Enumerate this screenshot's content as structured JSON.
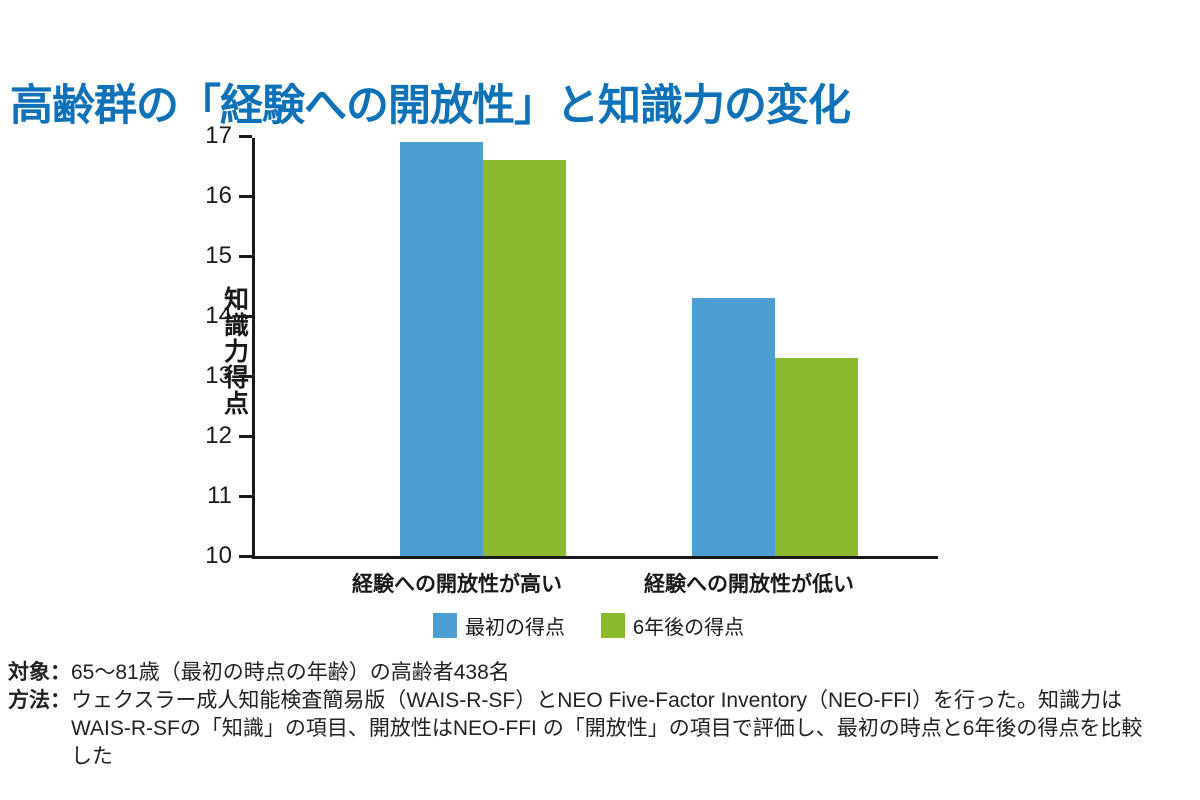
{
  "title": "高齢群の「経験への開放性」と知識力の変化",
  "chart_data": {
    "type": "bar",
    "categories": [
      "経験への開放性が高い",
      "経験への開放性が低い"
    ],
    "series": [
      {
        "name": "最初の得点",
        "color": "#4d9ed3",
        "values": [
          16.9,
          14.3
        ]
      },
      {
        "name": "6年後の得点",
        "color": "#8cb92f",
        "values": [
          16.6,
          13.3
        ]
      }
    ],
    "title": "高齢群の「経験への開放性」と知識力の変化",
    "xlabel": "",
    "ylabel": "知識力得点",
    "ylim": [
      10,
      17
    ],
    "yticks": [
      10,
      11,
      12,
      13,
      14,
      15,
      16,
      17
    ],
    "grid": false,
    "legend_position": "bottom"
  },
  "notes": [
    {
      "label": "対象：",
      "text": "65〜81歳（最初の時点の年齢）の高齢者438名"
    },
    {
      "label": "方法：",
      "text": "ウェクスラー成人知能検査簡易版（WAIS-R-SF）とNEO Five-Factor Inventory（NEO-FFI）を行った。知識力はWAIS-R-SFの「知識」の項目、開放性はNEO-FFI の「開放性」の項目で評価し、最初の時点と6年後の得点を比較した"
    }
  ],
  "colors": {
    "title_accent": "#0f72b8",
    "axis": "#1a1a1a",
    "bar_first": "#4d9ed3",
    "bar_later": "#8cb92f"
  }
}
